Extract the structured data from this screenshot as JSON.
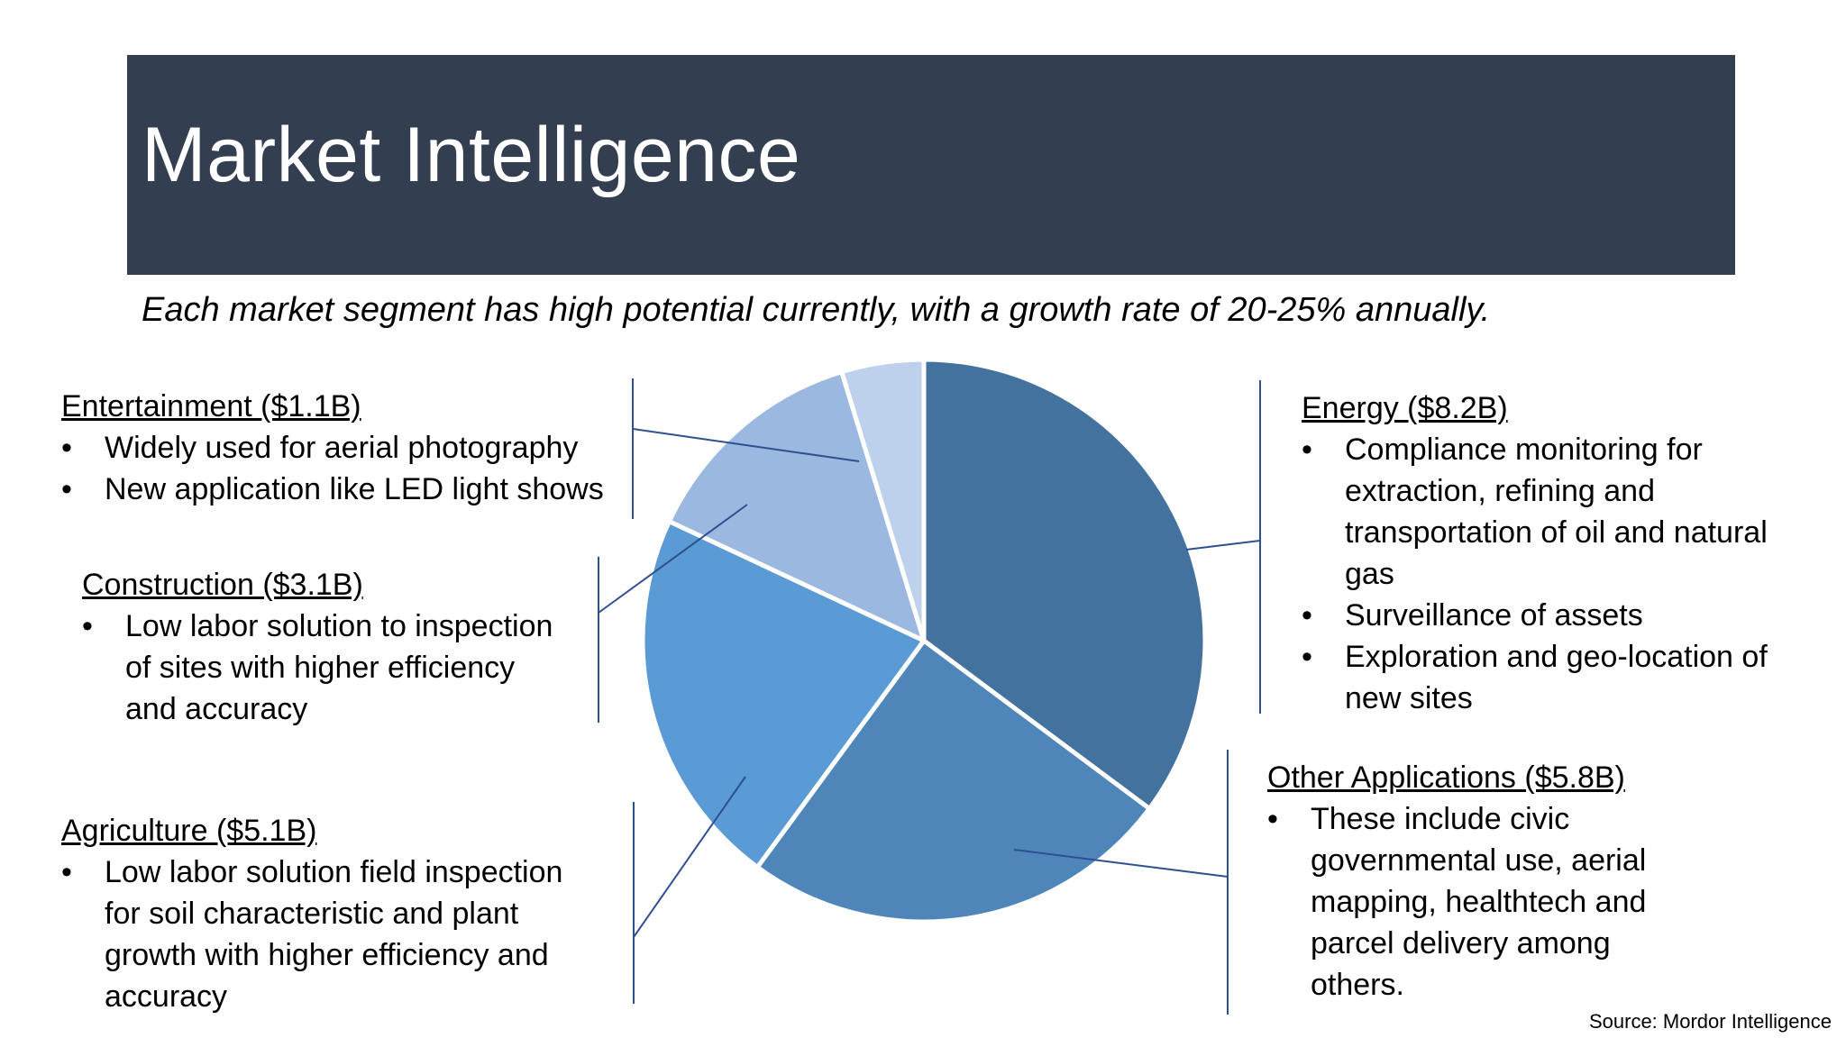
{
  "slide": {
    "title": "Market Intelligence",
    "subtitle": "Each market segment has high potential currently, with a growth rate of 20-25% annually.",
    "source": "Source: Mordor Intelligence"
  },
  "segments": {
    "entertainment": {
      "heading": "Entertainment ($1.1B)",
      "bullets": [
        "Widely used for aerial photography",
        "New application like LED light shows"
      ]
    },
    "construction": {
      "heading": "Construction ($3.1B)",
      "bullets": [
        "Low labor solution to inspection of sites with higher efficiency and accuracy"
      ]
    },
    "agriculture": {
      "heading": "Agriculture ($5.1B)",
      "bullets": [
        "Low labor solution field inspection for soil characteristic and plant growth with higher efficiency and accuracy"
      ]
    },
    "energy": {
      "heading": "Energy ($8.2B)",
      "bullets": [
        "Compliance monitoring for extraction, refining and transportation of oil and natural gas",
        "Surveillance of assets",
        "Exploration and geo-location of new sites"
      ]
    },
    "other": {
      "heading": "Other Applications ($5.8B)",
      "bullets": [
        "These include civic governmental use, aerial mapping, healthtech and parcel delivery among others."
      ]
    }
  },
  "chart_data": {
    "type": "pie",
    "categories": [
      "Energy",
      "Other Applications",
      "Agriculture",
      "Construction",
      "Entertainment"
    ],
    "values": [
      8.2,
      5.8,
      5.1,
      3.1,
      1.1
    ],
    "colors": [
      "#44729f",
      "#4f86ba",
      "#5b9bd5",
      "#9bb8e0",
      "#bdd1ec"
    ],
    "start": "12 o'clock, clockwise"
  },
  "colors": {
    "title_bar": "#333f50",
    "leader_lines": "#2f4f8f"
  }
}
